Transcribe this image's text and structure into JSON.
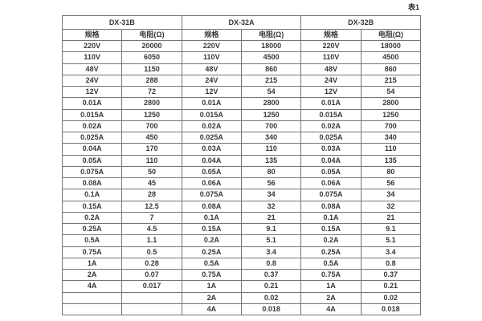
{
  "caption": "表1",
  "table": {
    "groups": [
      {
        "name": "DX-31B",
        "col_headers": [
          "规格",
          "电阻(Ω)"
        ],
        "rows": [
          [
            "220V",
            "20000"
          ],
          [
            "110V",
            "6050"
          ],
          [
            "48V",
            "1150"
          ],
          [
            "24V",
            "288"
          ],
          [
            "12V",
            "72"
          ],
          [
            "0.01A",
            "2800"
          ],
          [
            "0.015A",
            "1250"
          ],
          [
            "0.02A",
            "700"
          ],
          [
            "0.025A",
            "450"
          ],
          [
            "0.04A",
            "170"
          ],
          [
            "0.05A",
            "110"
          ],
          [
            "0.075A",
            "50"
          ],
          [
            "0.08A",
            "45"
          ],
          [
            "0.1A",
            "28"
          ],
          [
            "0.15A",
            "12.5"
          ],
          [
            "0.2A",
            "7"
          ],
          [
            "0.25A",
            "4.5"
          ],
          [
            "0.5A",
            "1.1"
          ],
          [
            "0.75A",
            "0.5"
          ],
          [
            "1A",
            "0.28"
          ],
          [
            "2A",
            "0.07"
          ],
          [
            "4A",
            "0.017"
          ],
          [
            "",
            ""
          ],
          [
            "",
            ""
          ]
        ]
      },
      {
        "name": "DX-32A",
        "col_headers": [
          "规格",
          "电阻(Ω)"
        ],
        "rows": [
          [
            "220V",
            "18000"
          ],
          [
            "110V",
            "4500"
          ],
          [
            "48V",
            "860"
          ],
          [
            "24V",
            "215"
          ],
          [
            "12V",
            "54"
          ],
          [
            "0.01A",
            "2800"
          ],
          [
            "0.015A",
            "1250"
          ],
          [
            "0.02A",
            "700"
          ],
          [
            "0.025A",
            "340"
          ],
          [
            "0.03A",
            "110"
          ],
          [
            "0.04A",
            "135"
          ],
          [
            "0.05A",
            "80"
          ],
          [
            "0.06A",
            "56"
          ],
          [
            "0.075A",
            "34"
          ],
          [
            "0.08A",
            "32"
          ],
          [
            "0.1A",
            "21"
          ],
          [
            "0.15A",
            "9.1"
          ],
          [
            "0.2A",
            "5.1"
          ],
          [
            "0.25A",
            "3.4"
          ],
          [
            "0.5A",
            "0.8"
          ],
          [
            "0.75A",
            "0.37"
          ],
          [
            "1A",
            "0.21"
          ],
          [
            "2A",
            "0.02"
          ],
          [
            "4A",
            "0.018"
          ]
        ]
      },
      {
        "name": "DX-32B",
        "col_headers": [
          "规格",
          "电阻(Ω)"
        ],
        "rows": [
          [
            "220V",
            "18000"
          ],
          [
            "110V",
            "4500"
          ],
          [
            "48V",
            "860"
          ],
          [
            "24V",
            "215"
          ],
          [
            "12V",
            "54"
          ],
          [
            "0.01A",
            "2800"
          ],
          [
            "0.015A",
            "1250"
          ],
          [
            "0.02A",
            "700"
          ],
          [
            "0.025A",
            "340"
          ],
          [
            "0.03A",
            "110"
          ],
          [
            "0.04A",
            "135"
          ],
          [
            "0.05A",
            "80"
          ],
          [
            "0.06A",
            "56"
          ],
          [
            "0.075A",
            "34"
          ],
          [
            "0.08A",
            "32"
          ],
          [
            "0.1A",
            "21"
          ],
          [
            "0.15A",
            "9.1"
          ],
          [
            "0.2A",
            "5.1"
          ],
          [
            "0.25A",
            "3.4"
          ],
          [
            "0.5A",
            "0.8"
          ],
          [
            "0.75A",
            "0.37"
          ],
          [
            "1A",
            "0.21"
          ],
          [
            "2A",
            "0.02"
          ],
          [
            "4A",
            "0.018"
          ]
        ]
      }
    ]
  }
}
